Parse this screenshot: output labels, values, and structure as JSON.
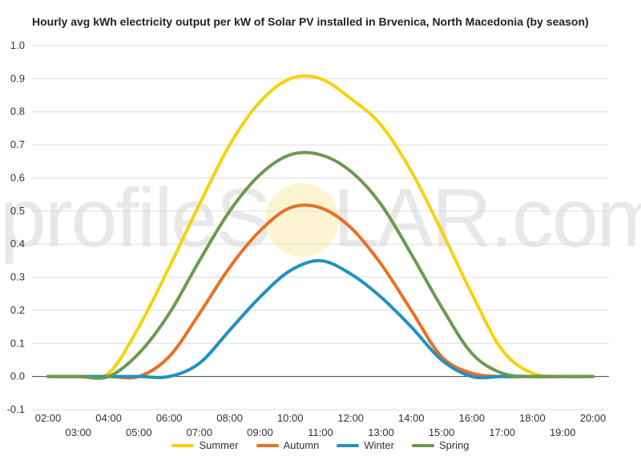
{
  "chart_data": {
    "type": "line",
    "title": "Hourly avg kWh electricity output per kW of Solar PV installed in Brvenica, North Macedonia (by season)",
    "xlabel": "",
    "ylabel": "",
    "ylim": [
      -0.1,
      1.0
    ],
    "yticks": [
      "1.0",
      "0.9",
      "0.8",
      "0.7",
      "0.6",
      "0.5",
      "0.4",
      "0.3",
      "0.2",
      "0.1",
      "0.0",
      "-0.1"
    ],
    "xtick_labels": [
      "02:00",
      "03:00",
      "04:00",
      "05:00",
      "06:00",
      "07:00",
      "08:00",
      "09:00",
      "10:00",
      "11:00",
      "12:00",
      "13:00",
      "14:00",
      "15:00",
      "16:00",
      "17:00",
      "18:00",
      "19:00",
      "20:00"
    ],
    "x": [
      2,
      3,
      4,
      5,
      6,
      7,
      8,
      9,
      10,
      11,
      12,
      13,
      14,
      15,
      16,
      17,
      18,
      19,
      20
    ],
    "grid": true,
    "legend_position": "bottom",
    "series": [
      {
        "name": "Summer",
        "color": "#f7d20a",
        "values": [
          0,
          0,
          0.01,
          0.15,
          0.33,
          0.52,
          0.7,
          0.83,
          0.9,
          0.9,
          0.84,
          0.76,
          0.62,
          0.44,
          0.25,
          0.08,
          0.01,
          0,
          0
        ]
      },
      {
        "name": "Autumn",
        "color": "#e87025",
        "values": [
          0,
          0,
          0,
          0,
          0.06,
          0.19,
          0.33,
          0.44,
          0.51,
          0.51,
          0.45,
          0.34,
          0.2,
          0.06,
          0.01,
          0,
          0,
          0,
          0
        ]
      },
      {
        "name": "Winter",
        "color": "#2191c1",
        "values": [
          0,
          0,
          0,
          0,
          0,
          0.04,
          0.14,
          0.24,
          0.32,
          0.35,
          0.31,
          0.24,
          0.15,
          0.05,
          0,
          0,
          0,
          0,
          0
        ]
      },
      {
        "name": "Spring",
        "color": "#6b9a4d",
        "values": [
          0,
          0,
          0,
          0.07,
          0.19,
          0.35,
          0.5,
          0.61,
          0.67,
          0.67,
          0.62,
          0.52,
          0.37,
          0.21,
          0.07,
          0.01,
          0,
          0,
          0
        ]
      }
    ]
  },
  "watermark": {
    "text_left": "profileS",
    "text_mid": "O",
    "text_right": "LAR.com"
  }
}
